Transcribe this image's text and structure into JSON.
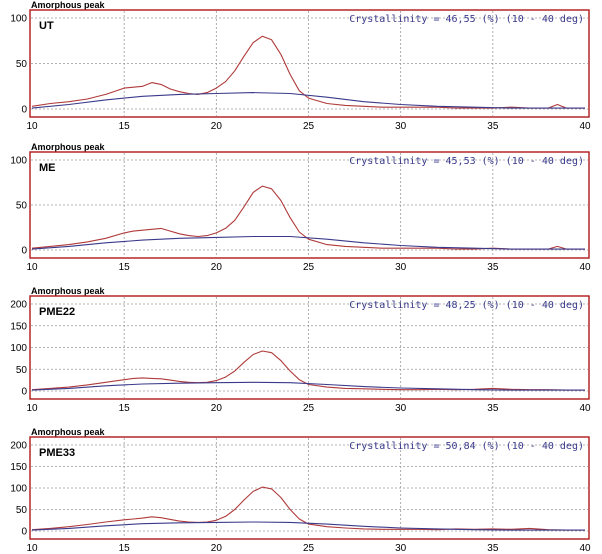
{
  "figure": {
    "colors": {
      "frame": "#b01818",
      "measured": "#b03a3a",
      "background": "#3a3a8c",
      "grid": "#9a9a9a",
      "annotation": "#3a3a8c"
    }
  },
  "chart_data": [
    {
      "type": "line",
      "panel_title": "Amorphous peak",
      "sample": "UT",
      "annotation": "Crystallinity = 46,55 (%) (10 - 40 deg)",
      "xlim": [
        10,
        40
      ],
      "ylim": [
        0,
        100
      ],
      "xticks": [
        10,
        15,
        20,
        25,
        30,
        35,
        40
      ],
      "yticks": [
        0,
        50,
        100
      ],
      "grid": true,
      "series": [
        {
          "role": "measured",
          "color": "#b03a3a",
          "x": [
            10,
            11,
            12,
            13,
            14,
            15,
            15.5,
            16,
            16.5,
            17,
            17.5,
            18,
            18.5,
            19,
            19.5,
            20,
            20.5,
            21,
            21.5,
            22,
            22.5,
            23,
            23.5,
            24,
            24.5,
            25,
            26,
            27,
            28,
            29,
            30,
            31,
            32,
            33,
            34,
            35,
            36,
            37,
            38,
            38.5,
            39,
            40
          ],
          "y": [
            3,
            6,
            8,
            11,
            16,
            23,
            24,
            25,
            29,
            27,
            22,
            19,
            17,
            16,
            18,
            23,
            30,
            42,
            58,
            73,
            80,
            76,
            60,
            38,
            20,
            12,
            6,
            4,
            3,
            2,
            2,
            2,
            2,
            1,
            1,
            1,
            2,
            1,
            1,
            5,
            1,
            1
          ]
        },
        {
          "role": "background",
          "color": "#3a3a8c",
          "x": [
            10,
            12,
            14,
            16,
            18,
            20,
            22,
            24,
            26,
            28,
            30,
            32,
            34,
            36,
            38,
            40
          ],
          "y": [
            1,
            5,
            10,
            14,
            16,
            17,
            18,
            17,
            13,
            8,
            5,
            3,
            2,
            1,
            1,
            1
          ]
        }
      ]
    },
    {
      "type": "line",
      "panel_title": "Amorphous peak",
      "sample": "ME",
      "annotation": "Crystallinity = 45,53 (%) (10 - 40 deg)",
      "xlim": [
        10,
        40
      ],
      "ylim": [
        0,
        100
      ],
      "xticks": [
        10,
        15,
        20,
        25,
        30,
        35,
        40
      ],
      "yticks": [
        0,
        50,
        100
      ],
      "grid": true,
      "series": [
        {
          "role": "measured",
          "color": "#b03a3a",
          "x": [
            10,
            11,
            12,
            13,
            14,
            15,
            15.5,
            16,
            16.5,
            17,
            17.5,
            18,
            18.5,
            19,
            19.5,
            20,
            20.5,
            21,
            21.5,
            22,
            22.5,
            23,
            23.5,
            24,
            24.5,
            25,
            26,
            27,
            28,
            29,
            30,
            31,
            32,
            33,
            34,
            35,
            36,
            37,
            38,
            38.5,
            39,
            40
          ],
          "y": [
            2,
            4,
            6,
            9,
            13,
            19,
            21,
            22,
            23,
            24,
            21,
            18,
            16,
            15,
            16,
            19,
            24,
            33,
            48,
            64,
            71,
            68,
            55,
            36,
            20,
            12,
            6,
            4,
            3,
            2,
            2,
            2,
            2,
            1,
            1,
            2,
            1,
            1,
            1,
            4,
            1,
            1
          ]
        },
        {
          "role": "background",
          "color": "#3a3a8c",
          "x": [
            10,
            12,
            14,
            16,
            18,
            20,
            22,
            24,
            26,
            28,
            30,
            32,
            34,
            36,
            38,
            40
          ],
          "y": [
            1,
            4,
            8,
            11,
            13,
            14,
            15,
            15,
            12,
            8,
            5,
            3,
            2,
            1,
            1,
            1
          ]
        }
      ]
    },
    {
      "type": "line",
      "panel_title": "Amorphous peak",
      "sample": "PME22",
      "annotation": "Crystallinity = 48,25 (%) (10 - 40 deg)",
      "xlim": [
        10,
        40
      ],
      "ylim": [
        0,
        200
      ],
      "xticks": [
        10,
        15,
        20,
        25,
        30,
        35,
        40
      ],
      "yticks": [
        0,
        50,
        100,
        150,
        200
      ],
      "grid": true,
      "series": [
        {
          "role": "measured",
          "color": "#b03a3a",
          "x": [
            10,
            11,
            12,
            13,
            14,
            15,
            15.5,
            16,
            16.5,
            17,
            17.5,
            18,
            18.5,
            19,
            19.5,
            20,
            20.5,
            21,
            21.5,
            22,
            22.5,
            23,
            23.5,
            24,
            24.5,
            25,
            26,
            27,
            28,
            29,
            30,
            31,
            32,
            33,
            34,
            35,
            36,
            37,
            38,
            39,
            40
          ],
          "y": [
            3,
            6,
            9,
            14,
            20,
            26,
            29,
            30,
            29,
            28,
            25,
            22,
            20,
            19,
            20,
            24,
            32,
            46,
            66,
            84,
            92,
            88,
            70,
            46,
            26,
            15,
            9,
            6,
            5,
            4,
            3,
            3,
            4,
            3,
            4,
            6,
            4,
            3,
            3,
            2,
            2
          ]
        },
        {
          "role": "background",
          "color": "#3a3a8c",
          "x": [
            10,
            12,
            14,
            16,
            18,
            20,
            22,
            24,
            26,
            28,
            30,
            32,
            34,
            36,
            38,
            40
          ],
          "y": [
            2,
            6,
            12,
            16,
            18,
            19,
            20,
            19,
            15,
            10,
            7,
            5,
            3,
            2,
            2,
            2
          ]
        }
      ]
    },
    {
      "type": "line",
      "panel_title": "Amorphous peak",
      "sample": "PME33",
      "annotation": "Crystallinity = 50,84 (%) (10 - 40 deg)",
      "xlim": [
        10,
        40
      ],
      "ylim": [
        0,
        200
      ],
      "xticks": [
        10,
        15,
        20,
        25,
        30,
        35,
        40
      ],
      "yticks": [
        0,
        50,
        100,
        150,
        200
      ],
      "grid": true,
      "series": [
        {
          "role": "measured",
          "color": "#b03a3a",
          "x": [
            10,
            11,
            12,
            13,
            14,
            15,
            15.5,
            16,
            16.5,
            17,
            17.5,
            18,
            18.5,
            19,
            19.5,
            20,
            20.5,
            21,
            21.5,
            22,
            22.5,
            23,
            23.5,
            24,
            24.5,
            25,
            26,
            27,
            28,
            29,
            30,
            31,
            32,
            33,
            34,
            35,
            36,
            37,
            38,
            39,
            40
          ],
          "y": [
            3,
            6,
            10,
            15,
            21,
            26,
            28,
            30,
            33,
            31,
            27,
            23,
            21,
            20,
            21,
            25,
            34,
            50,
            72,
            92,
            102,
            98,
            78,
            50,
            28,
            16,
            10,
            7,
            5,
            4,
            4,
            4,
            3,
            5,
            4,
            5,
            4,
            6,
            3,
            2,
            2
          ]
        },
        {
          "role": "background",
          "color": "#3a3a8c",
          "x": [
            10,
            12,
            14,
            16,
            18,
            20,
            22,
            24,
            26,
            28,
            30,
            32,
            34,
            36,
            38,
            40
          ],
          "y": [
            2,
            6,
            12,
            17,
            19,
            20,
            21,
            20,
            16,
            11,
            7,
            5,
            3,
            2,
            2,
            2
          ]
        }
      ]
    }
  ]
}
